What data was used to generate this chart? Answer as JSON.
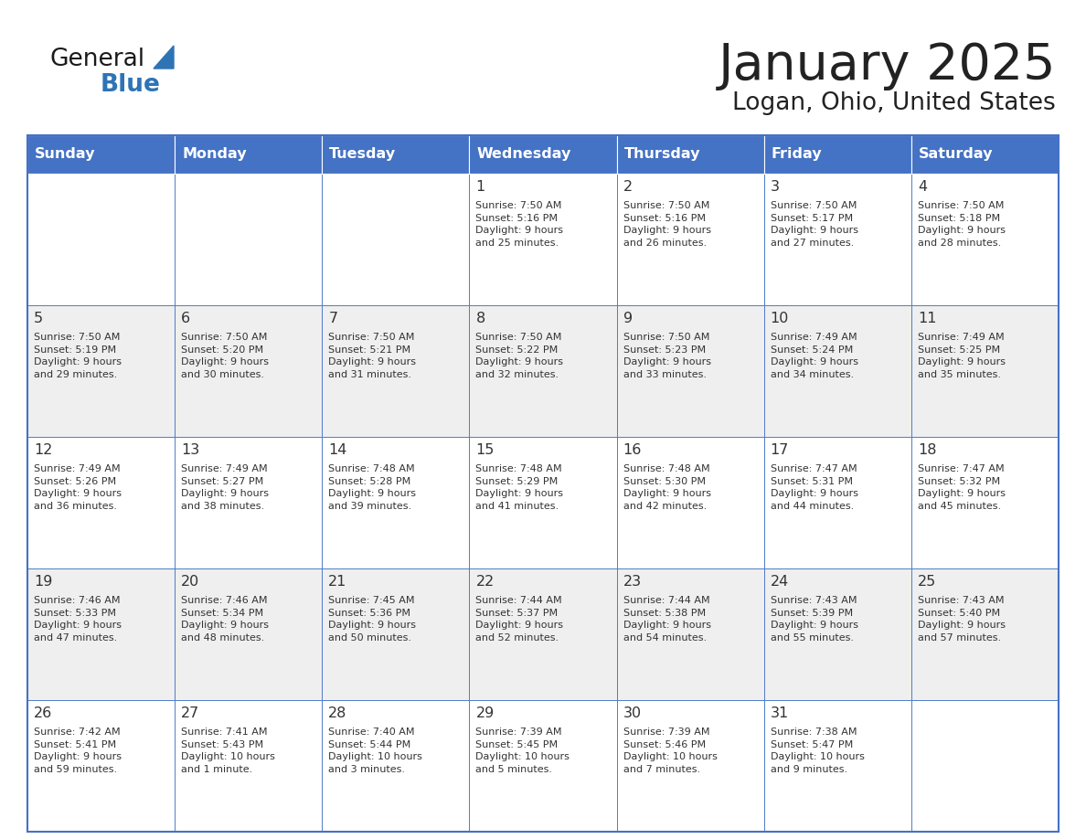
{
  "title": "January 2025",
  "subtitle": "Logan, Ohio, United States",
  "days_of_week": [
    "Sunday",
    "Monday",
    "Tuesday",
    "Wednesday",
    "Thursday",
    "Friday",
    "Saturday"
  ],
  "header_bg": "#4472C4",
  "header_text_color": "#FFFFFF",
  "odd_row_bg": "#FFFFFF",
  "even_row_bg": "#EFEFEF",
  "cell_text_color": "#333333",
  "grid_line_color": "#4472C4",
  "title_color": "#222222",
  "logo_general_color": "#1a1a1a",
  "logo_blue_color": "#2E74B5",
  "weeks": [
    [
      {
        "day": null,
        "info": null
      },
      {
        "day": null,
        "info": null
      },
      {
        "day": null,
        "info": null
      },
      {
        "day": 1,
        "info": "Sunrise: 7:50 AM\nSunset: 5:16 PM\nDaylight: 9 hours\nand 25 minutes."
      },
      {
        "day": 2,
        "info": "Sunrise: 7:50 AM\nSunset: 5:16 PM\nDaylight: 9 hours\nand 26 minutes."
      },
      {
        "day": 3,
        "info": "Sunrise: 7:50 AM\nSunset: 5:17 PM\nDaylight: 9 hours\nand 27 minutes."
      },
      {
        "day": 4,
        "info": "Sunrise: 7:50 AM\nSunset: 5:18 PM\nDaylight: 9 hours\nand 28 minutes."
      }
    ],
    [
      {
        "day": 5,
        "info": "Sunrise: 7:50 AM\nSunset: 5:19 PM\nDaylight: 9 hours\nand 29 minutes."
      },
      {
        "day": 6,
        "info": "Sunrise: 7:50 AM\nSunset: 5:20 PM\nDaylight: 9 hours\nand 30 minutes."
      },
      {
        "day": 7,
        "info": "Sunrise: 7:50 AM\nSunset: 5:21 PM\nDaylight: 9 hours\nand 31 minutes."
      },
      {
        "day": 8,
        "info": "Sunrise: 7:50 AM\nSunset: 5:22 PM\nDaylight: 9 hours\nand 32 minutes."
      },
      {
        "day": 9,
        "info": "Sunrise: 7:50 AM\nSunset: 5:23 PM\nDaylight: 9 hours\nand 33 minutes."
      },
      {
        "day": 10,
        "info": "Sunrise: 7:49 AM\nSunset: 5:24 PM\nDaylight: 9 hours\nand 34 minutes."
      },
      {
        "day": 11,
        "info": "Sunrise: 7:49 AM\nSunset: 5:25 PM\nDaylight: 9 hours\nand 35 minutes."
      }
    ],
    [
      {
        "day": 12,
        "info": "Sunrise: 7:49 AM\nSunset: 5:26 PM\nDaylight: 9 hours\nand 36 minutes."
      },
      {
        "day": 13,
        "info": "Sunrise: 7:49 AM\nSunset: 5:27 PM\nDaylight: 9 hours\nand 38 minutes."
      },
      {
        "day": 14,
        "info": "Sunrise: 7:48 AM\nSunset: 5:28 PM\nDaylight: 9 hours\nand 39 minutes."
      },
      {
        "day": 15,
        "info": "Sunrise: 7:48 AM\nSunset: 5:29 PM\nDaylight: 9 hours\nand 41 minutes."
      },
      {
        "day": 16,
        "info": "Sunrise: 7:48 AM\nSunset: 5:30 PM\nDaylight: 9 hours\nand 42 minutes."
      },
      {
        "day": 17,
        "info": "Sunrise: 7:47 AM\nSunset: 5:31 PM\nDaylight: 9 hours\nand 44 minutes."
      },
      {
        "day": 18,
        "info": "Sunrise: 7:47 AM\nSunset: 5:32 PM\nDaylight: 9 hours\nand 45 minutes."
      }
    ],
    [
      {
        "day": 19,
        "info": "Sunrise: 7:46 AM\nSunset: 5:33 PM\nDaylight: 9 hours\nand 47 minutes."
      },
      {
        "day": 20,
        "info": "Sunrise: 7:46 AM\nSunset: 5:34 PM\nDaylight: 9 hours\nand 48 minutes."
      },
      {
        "day": 21,
        "info": "Sunrise: 7:45 AM\nSunset: 5:36 PM\nDaylight: 9 hours\nand 50 minutes."
      },
      {
        "day": 22,
        "info": "Sunrise: 7:44 AM\nSunset: 5:37 PM\nDaylight: 9 hours\nand 52 minutes."
      },
      {
        "day": 23,
        "info": "Sunrise: 7:44 AM\nSunset: 5:38 PM\nDaylight: 9 hours\nand 54 minutes."
      },
      {
        "day": 24,
        "info": "Sunrise: 7:43 AM\nSunset: 5:39 PM\nDaylight: 9 hours\nand 55 minutes."
      },
      {
        "day": 25,
        "info": "Sunrise: 7:43 AM\nSunset: 5:40 PM\nDaylight: 9 hours\nand 57 minutes."
      }
    ],
    [
      {
        "day": 26,
        "info": "Sunrise: 7:42 AM\nSunset: 5:41 PM\nDaylight: 9 hours\nand 59 minutes."
      },
      {
        "day": 27,
        "info": "Sunrise: 7:41 AM\nSunset: 5:43 PM\nDaylight: 10 hours\nand 1 minute."
      },
      {
        "day": 28,
        "info": "Sunrise: 7:40 AM\nSunset: 5:44 PM\nDaylight: 10 hours\nand 3 minutes."
      },
      {
        "day": 29,
        "info": "Sunrise: 7:39 AM\nSunset: 5:45 PM\nDaylight: 10 hours\nand 5 minutes."
      },
      {
        "day": 30,
        "info": "Sunrise: 7:39 AM\nSunset: 5:46 PM\nDaylight: 10 hours\nand 7 minutes."
      },
      {
        "day": 31,
        "info": "Sunrise: 7:38 AM\nSunset: 5:47 PM\nDaylight: 10 hours\nand 9 minutes."
      },
      {
        "day": null,
        "info": null
      }
    ]
  ]
}
